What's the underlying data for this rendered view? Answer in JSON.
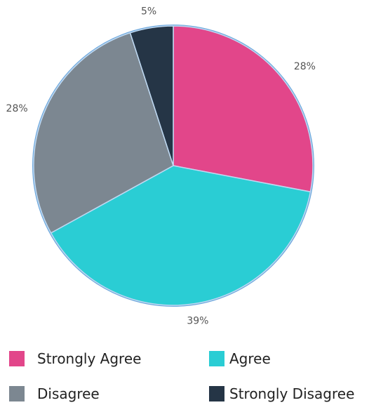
{
  "chart_data": {
    "type": "pie",
    "categories": [
      "Strongly Agree",
      "Agree",
      "Disagree",
      "Strongly Disagree"
    ],
    "values": [
      28,
      39,
      28,
      5
    ],
    "data_labels": [
      "28%",
      "39%",
      "28%",
      "5%"
    ],
    "colors": [
      "#E2468A",
      "#2ACDD4",
      "#7C8791",
      "#253546"
    ],
    "title": "",
    "legend_position": "bottom",
    "start_angle": "top, clockwise"
  },
  "legend": {
    "items": [
      {
        "label": "Strongly Agree",
        "color": "#E2468A"
      },
      {
        "label": "Agree",
        "color": "#2ACDD4"
      },
      {
        "label": "Disagree",
        "color": "#7C8791"
      },
      {
        "label": "Strongly Disagree",
        "color": "#253546"
      }
    ]
  }
}
